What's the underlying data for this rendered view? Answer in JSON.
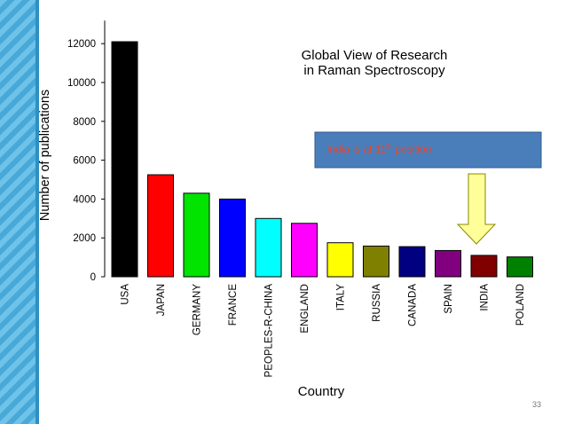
{
  "slide": {
    "page_number": "33"
  },
  "chart_data": {
    "type": "bar",
    "title": "Global View of Research in Raman Spectroscopy",
    "title_lines": [
      "Global View of Research",
      "in Raman Spectroscopy"
    ],
    "xlabel": "Country",
    "ylabel": "Number of publications",
    "ylim": [
      0,
      13000
    ],
    "yticks": [
      0,
      2000,
      4000,
      6000,
      8000,
      10000,
      12000
    ],
    "categories": [
      "USA",
      "JAPAN",
      "GERMANY",
      "FRANCE",
      "PEOPLES-R-CHINA",
      "ENGLAND",
      "ITALY",
      "RUSSIA",
      "CANADA",
      "SPAIN",
      "INDIA",
      "POLAND"
    ],
    "values": [
      12100,
      5250,
      4300,
      4000,
      3000,
      2750,
      1750,
      1580,
      1550,
      1350,
      1100,
      1020
    ],
    "bar_colors": [
      "#000000",
      "#ff0000",
      "#00e400",
      "#0000ff",
      "#00ffff",
      "#ff00ff",
      "#ffff00",
      "#808000",
      "#000080",
      "#800080",
      "#800000",
      "#008000"
    ],
    "grid": false,
    "annotation": {
      "text_main": "India is at 11",
      "text_sup": "th",
      "text_end": " position",
      "box_color": "#4a7ebb",
      "text_color": "#e8442c",
      "arrow_color": "#ffff99",
      "points_to": "INDIA"
    }
  }
}
